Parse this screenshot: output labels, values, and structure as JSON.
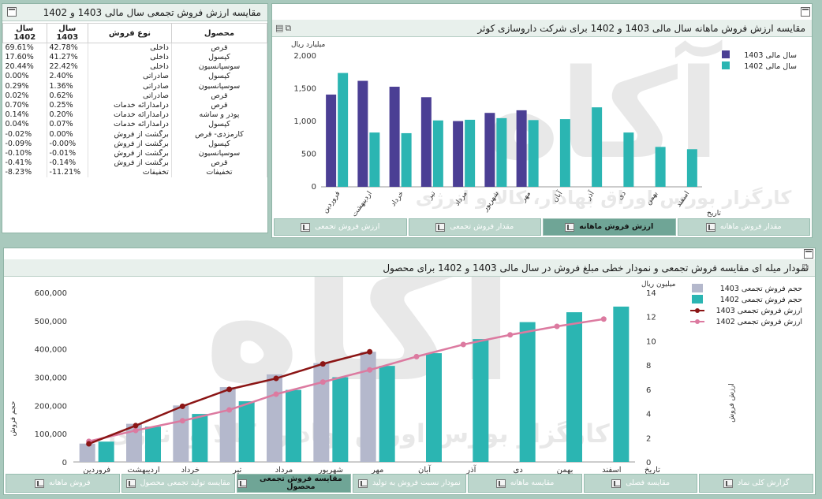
{
  "table_panel": {
    "title": "مقایسه ارزش فروش تجمعی سال مالی 1403 و 1402",
    "headers": [
      "محصول",
      "نوع فروش",
      "سال 1403",
      "سال 1402"
    ],
    "rows": [
      [
        "قرص",
        "داخلی",
        "42.78%",
        "69.61%"
      ],
      [
        "کپسول",
        "داخلی",
        "41.27%",
        "17.60%"
      ],
      [
        "سوسپانسیون",
        "داخلی",
        "22.42%",
        "20.44%"
      ],
      [
        "کپسول",
        "صادراتی",
        "2.40%",
        "0.00%"
      ],
      [
        "سوسپانسیون",
        "صادراتی",
        "1.36%",
        "0.29%"
      ],
      [
        "قرص",
        "صادراتی",
        "0.62%",
        "0.02%"
      ],
      [
        "قرص",
        "درآمدارائه خدمات",
        "0.25%",
        "0.70%"
      ],
      [
        "پودر و ساشه",
        "درآمدارائه خدمات",
        "0.20%",
        "0.14%"
      ],
      [
        "کپسول",
        "درآمدارائه خدمات",
        "0.07%",
        "0.04%"
      ],
      [
        "کارمزدی- قرص",
        "برگشت از فروش",
        "0.00%",
        "-0.02%"
      ],
      [
        "کپسول",
        "برگشت از فروش",
        "-0.00%",
        "-0.09%"
      ],
      [
        "سوسپانسیون",
        "برگشت از فروش",
        "-0.01%",
        "-0.10%"
      ],
      [
        "قرص",
        "برگشت از فروش",
        "-0.14%",
        "-0.41%"
      ],
      [
        "تخفیفات",
        "تخفیفات",
        "-11.21%",
        "-8.23%"
      ]
    ]
  },
  "monthly_panel": {
    "title": "مقایسه ارزش فروش ماهانه سال مالی 1403 و 1402 برای شرکت داروسازی کوثر",
    "ylabel": "میلیارد ریال",
    "xlabel": "تاریخ",
    "tabs": [
      "مقدار فروش ماهانه",
      "ارزش فروش ماهانه",
      "مقدار فروش تجمعی",
      "ارزش فروش تجمعی"
    ],
    "active_tab": 1
  },
  "cumulative_panel": {
    "title": "نمودار میله ای مقایسه فروش تجمعی و نمودار خطی مبلغ فروش در سال مالی 1403 و 1402 برای محصول",
    "ylabel_left": "حجم فروش",
    "ylabel_right": "ارزش فروش",
    "unit_right": "میلیون ریال",
    "xlabel": "تاریخ",
    "tabs": [
      "گزارش کلی نماد",
      "مقایسه فصلی",
      "مقایسه ماهانه",
      "نمودار نسبت فروش به تولید",
      "مقایسه فروش تجمعی محصول",
      "مقایسه تولید تجمعی محصول",
      "فروش ماهانه"
    ],
    "active_tab": 4
  },
  "watermark": {
    "big": "آکاه",
    "sub": "کارگزار بورس اوراق بهادار، کالا و انرژی"
  },
  "colors": {
    "purple": "#4b3f94",
    "teal": "#2bb5b2",
    "grey": "#b4b8cc",
    "darkred": "#8b1515",
    "pink": "#dc7aa0"
  },
  "chart_data": [
    {
      "type": "bar",
      "title": "مقایسه ارزش فروش ماهانه سال مالی 1403 و 1402 برای شرکت داروسازی کوثر",
      "ylabel": "میلیارد ریال",
      "xlabel": "تاریخ",
      "categories": [
        "فروردین",
        "اردیبهشت",
        "خرداد",
        "تیر",
        "مرداد",
        "شهریور",
        "مهر",
        "آبان",
        "آذر",
        "دی",
        "بهمن",
        "اسفند"
      ],
      "ylim": [
        0,
        2000
      ],
      "yticks": [
        "0",
        "500",
        "1,000",
        "1,500",
        "2,000"
      ],
      "legend": [
        "سال مالی 1403",
        "سال مالی 1402"
      ],
      "series": [
        {
          "name": "سال مالی 1403",
          "color": "#4b3f94",
          "values": [
            1410,
            1620,
            1530,
            1370,
            1005,
            1130,
            1170,
            null,
            null,
            null,
            null,
            null
          ]
        },
        {
          "name": "سال مالی 1402",
          "color": "#2bb5b2",
          "values": [
            1740,
            830,
            820,
            1015,
            1025,
            1050,
            1020,
            1035,
            1215,
            830,
            610,
            575
          ]
        }
      ]
    },
    {
      "type": "bar",
      "title": "نمودار میله ای مقایسه فروش تجمعی و نمودار خطی مبلغ فروش در سال مالی 1403 و 1402 برای محصول",
      "categories": [
        "فروردین",
        "اردیبهشت",
        "خرداد",
        "تیر",
        "مرداد",
        "شهریور",
        "مهر",
        "آبان",
        "آذر",
        "دی",
        "بهمن",
        "اسفند"
      ],
      "ylim": [
        0,
        600000
      ],
      "yticks": [
        "0",
        "100,000",
        "200,000",
        "300,000",
        "400,000",
        "500,000",
        "600,000"
      ],
      "y2lim": [
        0,
        14
      ],
      "y2ticks": [
        "0",
        "2",
        "4",
        "6",
        "8",
        "10",
        "12",
        "14"
      ],
      "legend": [
        "حجم فروش تجمعی  1403",
        "حجم فروش تجمعی 1402",
        "ارزش فروش تجمعی  1403",
        "ارزش فروش تجمعی  1402"
      ],
      "series": [
        {
          "name": "حجم فروش تجمعی  1403",
          "kind": "bar",
          "color": "#b4b8cc",
          "values": [
            65000,
            135000,
            200000,
            265000,
            310000,
            350000,
            390000,
            null,
            null,
            null,
            null,
            null
          ]
        },
        {
          "name": "حجم فروش تجمعی 1402",
          "kind": "bar",
          "color": "#2bb5b2",
          "values": [
            72000,
            125000,
            170000,
            215000,
            255000,
            300000,
            340000,
            385000,
            435000,
            495000,
            530000,
            550000
          ]
        },
        {
          "name": "ارزش فروش تجمعی  1403",
          "kind": "line",
          "color": "#8b1515",
          "values": [
            1.5,
            3.0,
            4.6,
            6.0,
            6.9,
            8.1,
            9.1,
            null,
            null,
            null,
            null,
            null
          ]
        },
        {
          "name": "ارزش فروش تجمعی  1402",
          "kind": "line",
          "color": "#dc7aa0",
          "values": [
            1.7,
            2.6,
            3.4,
            4.3,
            5.6,
            6.6,
            7.6,
            8.7,
            9.7,
            10.5,
            11.2,
            11.8
          ]
        }
      ]
    }
  ]
}
